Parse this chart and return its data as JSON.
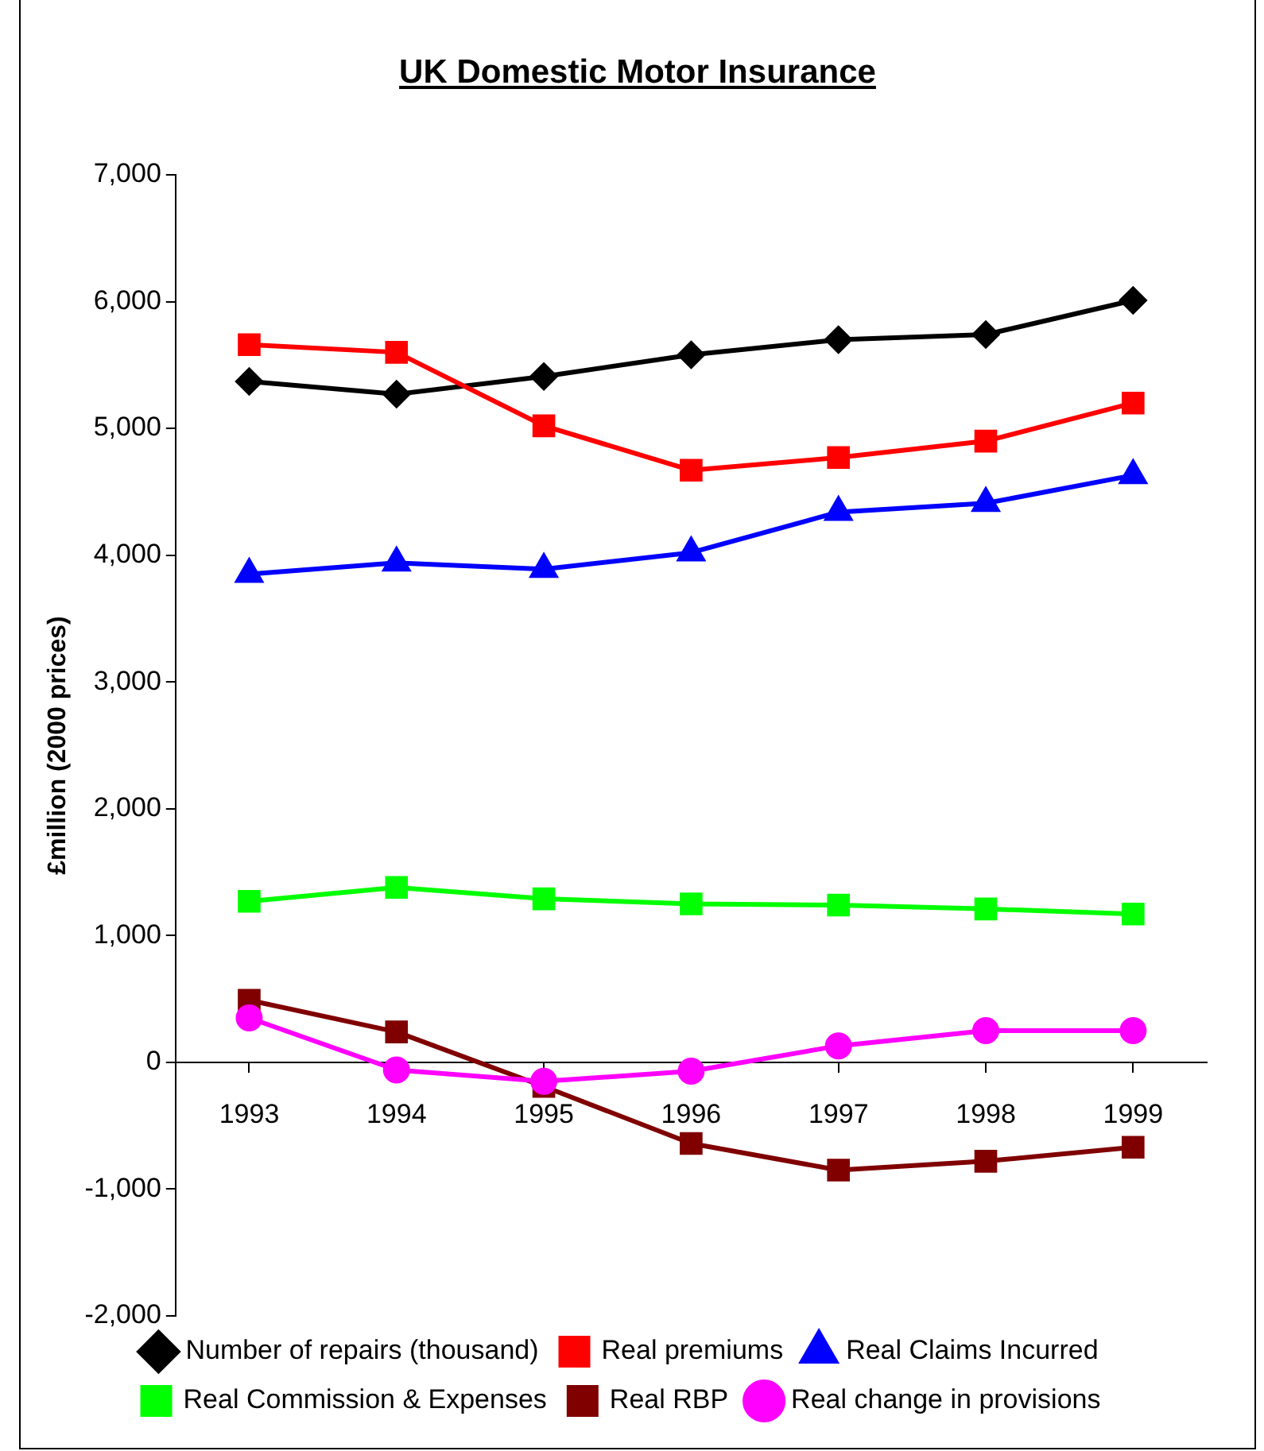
{
  "chart_data": {
    "type": "line",
    "title": "UK Domestic Motor Insurance",
    "ylabel": "£million (2000 prices)",
    "categories": [
      "1993",
      "1994",
      "1995",
      "1996",
      "1997",
      "1998",
      "1999"
    ],
    "ylim": [
      -2000,
      7000
    ],
    "yticks": [
      {
        "value": -2000,
        "label": "-2,000"
      },
      {
        "value": -1000,
        "label": "-1,000"
      },
      0,
      {
        "value": 1000,
        "label": "1,000"
      },
      {
        "value": 2000,
        "label": "2,000"
      },
      {
        "value": 3000,
        "label": "3,000"
      },
      {
        "value": 4000,
        "label": "4,000"
      },
      {
        "value": 5000,
        "label": "5,000"
      },
      {
        "value": 6000,
        "label": "6,000"
      },
      {
        "value": 7000,
        "label": "7,000"
      }
    ],
    "grid": false,
    "legend": "bottom",
    "line_style": "solid",
    "series": [
      {
        "name": "Number of repairs (thousand)",
        "color": "#000000",
        "marker": "diamond",
        "values": [
          5370,
          5270,
          5410,
          5580,
          5700,
          5740,
          6010
        ]
      },
      {
        "name": "Real premiums",
        "color": "#ff0000",
        "marker": "square",
        "values": [
          5660,
          5600,
          5020,
          4670,
          4770,
          4900,
          5200
        ]
      },
      {
        "name": "Real Claims Incurred",
        "color": "#0000ff",
        "marker": "triangle",
        "values": [
          3850,
          3940,
          3890,
          4020,
          4340,
          4410,
          4630
        ]
      },
      {
        "name": "Real Commission & Expenses",
        "color": "#00ff00",
        "marker": "square",
        "values": [
          1270,
          1380,
          1290,
          1250,
          1240,
          1210,
          1170
        ]
      },
      {
        "name": "Real RBP",
        "color": "#800000",
        "marker": "square",
        "values": [
          490,
          240,
          -190,
          -640,
          -850,
          -780,
          -670
        ]
      },
      {
        "name": "Real change in provisions",
        "color": "#ff00ff",
        "marker": "circle",
        "values": [
          350,
          -60,
          -150,
          -70,
          130,
          250,
          250
        ]
      }
    ]
  }
}
